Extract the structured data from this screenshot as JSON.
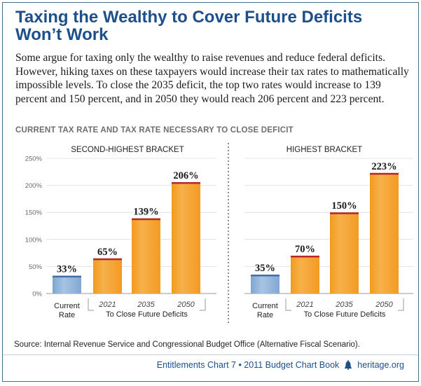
{
  "header": {
    "title": "Taxing the Wealthy to Cover Future Deficits Won’t Work",
    "intro": "Some argue for taxing only the wealthy to raise revenues and reduce federal deficits. However, hiking taxes on these taxpayers would increase their tax rates to mathematically impossible levels. To close the 2035 deficit, the top two rates would increase to 139 percent and 150 percent, and in 2050 they would reach 206 percent and 223 percent."
  },
  "chart_data": {
    "type": "bar",
    "title": "CURRENT TAX RATE AND TAX RATE NECESSARY TO CLOSE DEFICIT",
    "ylim": [
      0,
      250
    ],
    "yticks": [
      "0%",
      "50%",
      "100%",
      "150%",
      "200%",
      "250%"
    ],
    "ytick_values": [
      0,
      50,
      100,
      150,
      200,
      250
    ],
    "grid": true,
    "group_label": "To Close Future Deficits",
    "panels": [
      {
        "name": "SECOND-HIGHEST BRACKET",
        "categories": [
          "Current Rate",
          "2021",
          "2035",
          "2050"
        ],
        "values": [
          33,
          65,
          139,
          206
        ],
        "labels": [
          "33%",
          "65%",
          "139%",
          "206%"
        ]
      },
      {
        "name": "HIGHEST BRACKET",
        "categories": [
          "Current Rate",
          "2021",
          "2035",
          "2050"
        ],
        "values": [
          35,
          70,
          150,
          223
        ],
        "labels": [
          "35%",
          "70%",
          "150%",
          "223%"
        ]
      }
    ],
    "colors": {
      "current": "#8fb3d9",
      "future": "#f5a430",
      "cap": "#b3282d"
    }
  },
  "source": {
    "label": "Source:",
    "text": "Internal Revenue Service and Congressional Budget Office (Alternative Fiscal Scenario)."
  },
  "footer": {
    "chart_ref": "Entitlements Chart 7 • 2011 Budget Chart Book",
    "site": "heritage.org",
    "icon": "liberty-bell-icon"
  }
}
